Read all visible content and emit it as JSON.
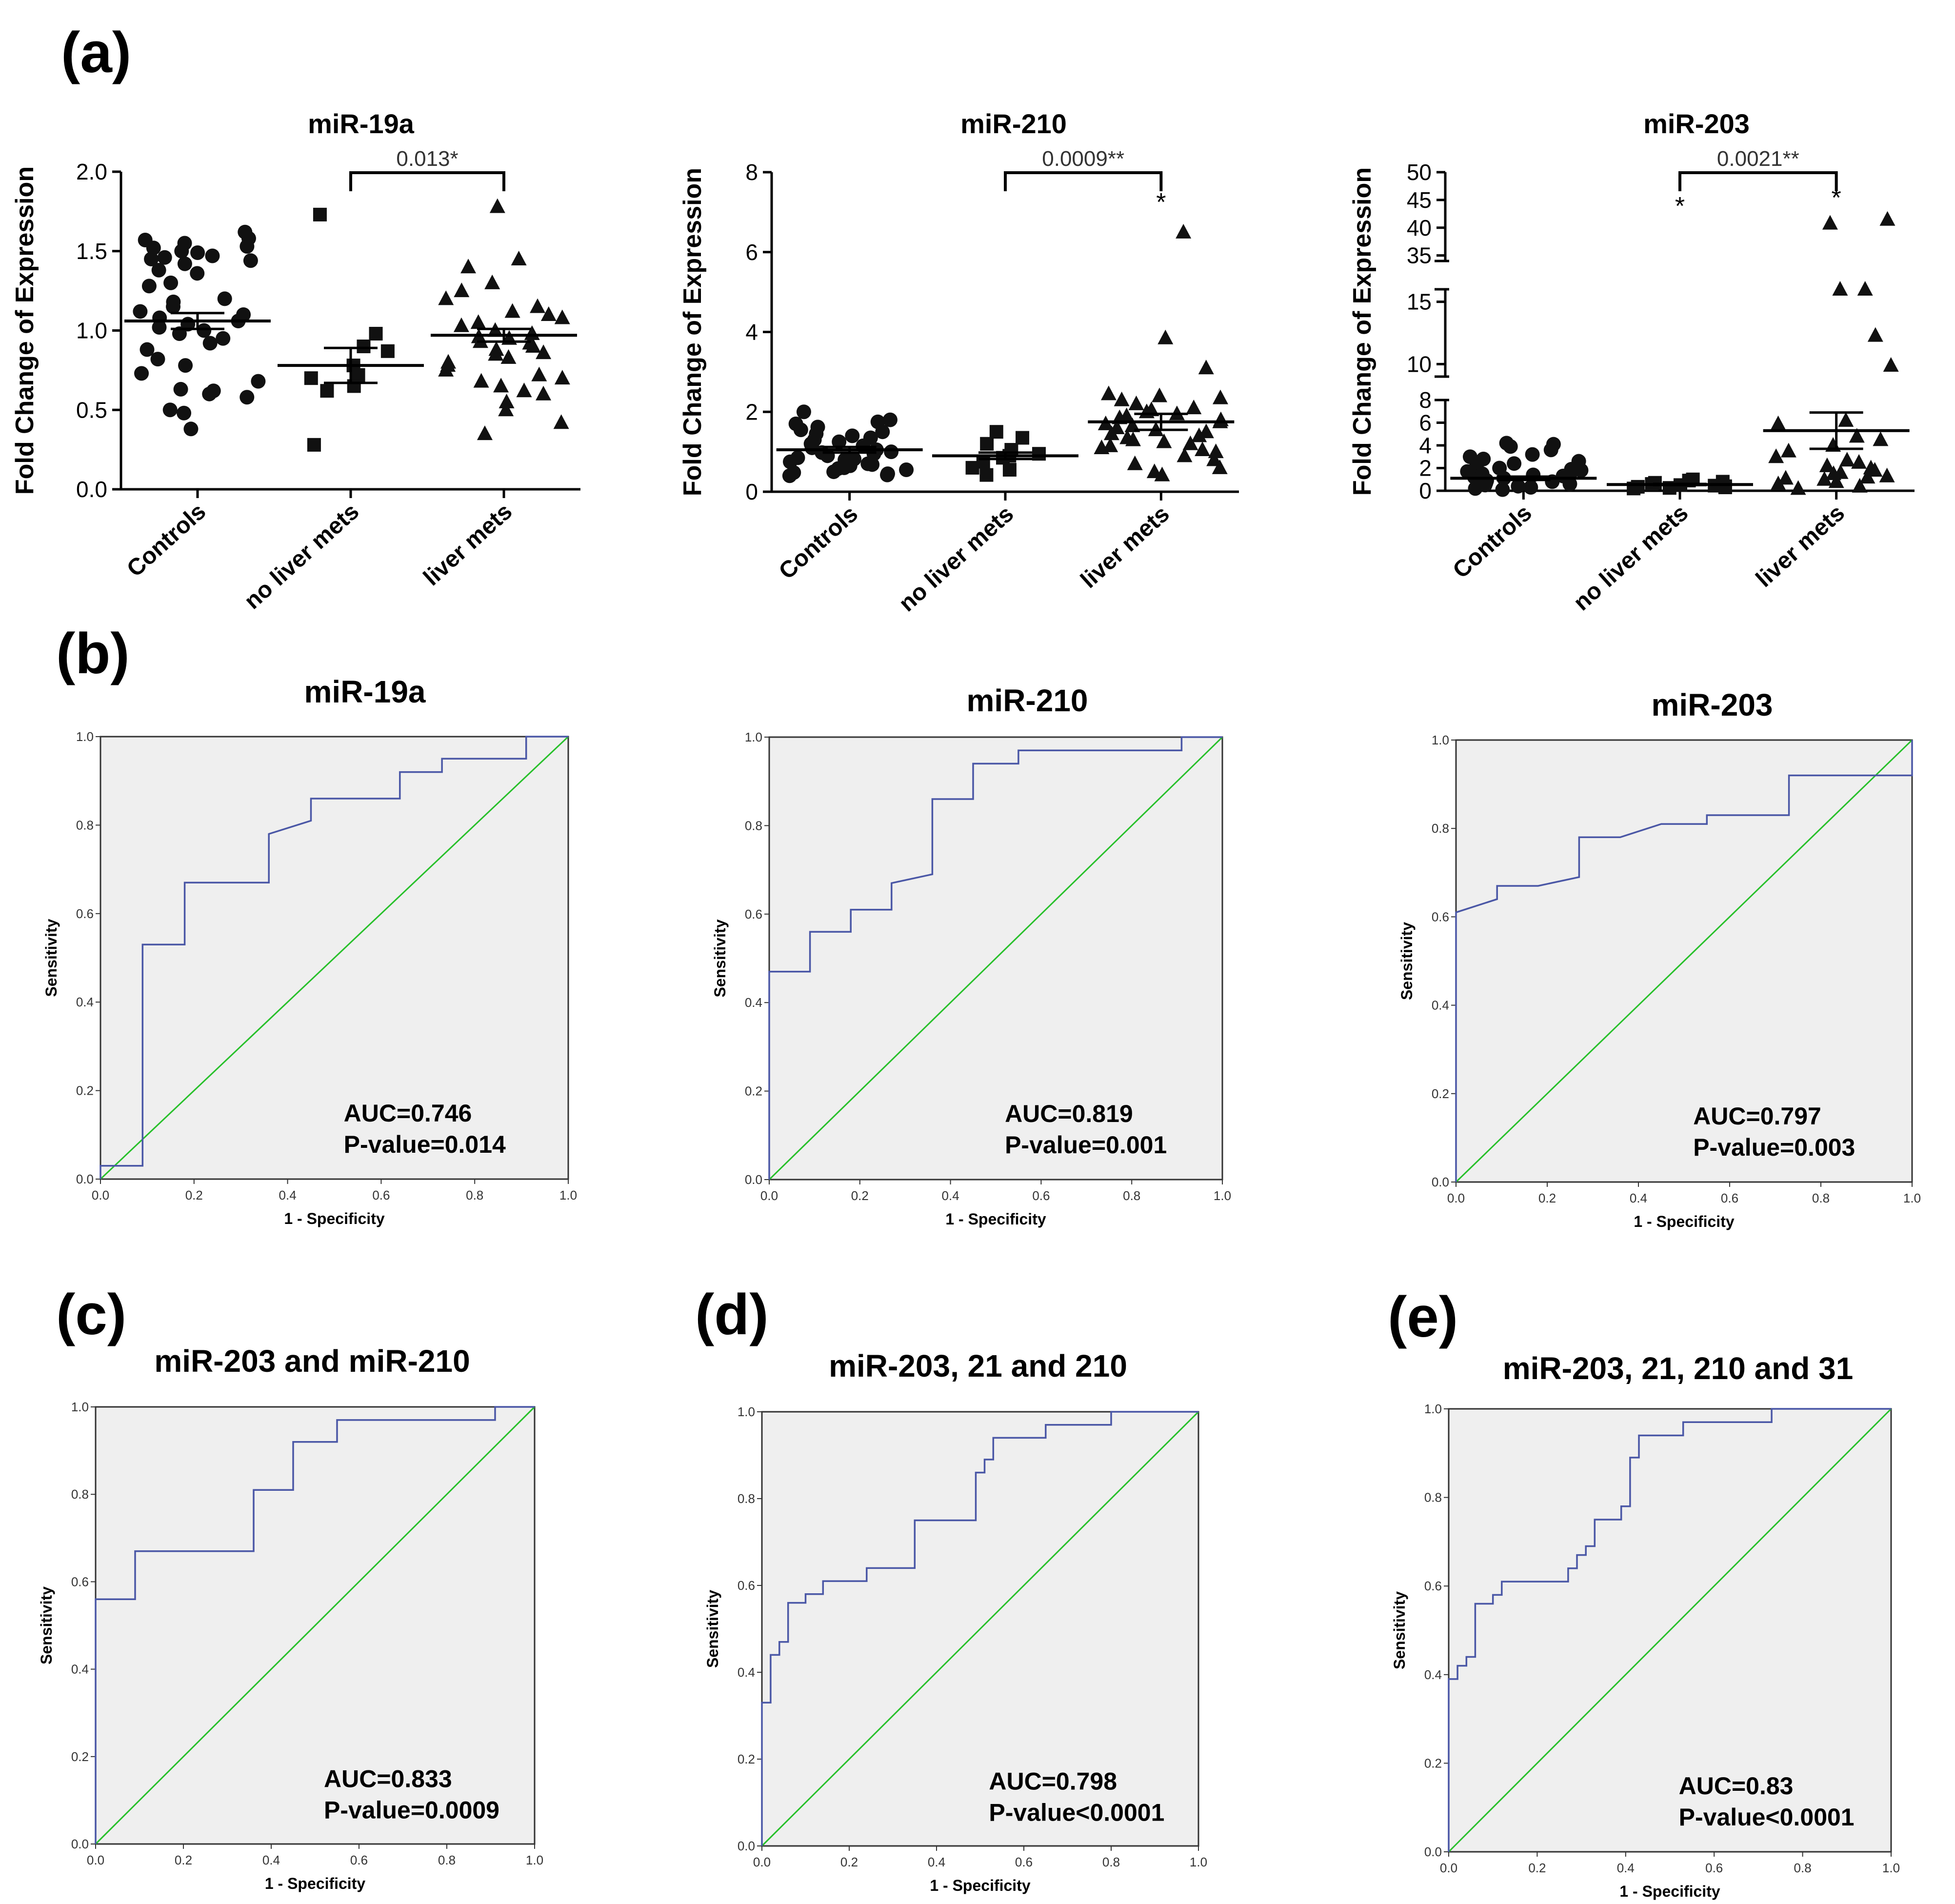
{
  "panel_labels": [
    "(a)",
    "(b)",
    "(c)",
    "(d)",
    "(e)"
  ],
  "colors": {
    "roc_curve": "#4a57a6",
    "reference_line": "#27c02a",
    "plot_bg": "#efefef",
    "marker": "#111111"
  },
  "chart_data": [
    {
      "panel": "(a)",
      "type": "scatter",
      "title": "miR-19a",
      "ylabel": "Fold Change of Expression",
      "categories": [
        "Controls",
        "no liver mets",
        "liver mets"
      ],
      "ylim": [
        0,
        2.0
      ],
      "yticks": [
        "0.0",
        "0.5",
        "1.0",
        "1.5",
        "2.0"
      ],
      "series": [
        {
          "name": "Controls",
          "marker": "circle",
          "mean": 1.06,
          "sem": 0.05,
          "values": [
            1.62,
            1.58,
            1.57,
            1.55,
            1.53,
            1.52,
            1.5,
            1.49,
            1.47,
            1.46,
            1.45,
            1.44,
            1.42,
            1.38,
            1.36,
            1.3,
            1.28,
            1.2,
            1.18,
            1.15,
            1.12,
            1.1,
            1.08,
            1.06,
            1.04,
            1.02,
            1.0,
            0.98,
            0.95,
            0.92,
            0.88,
            0.82,
            0.78,
            0.73,
            0.68,
            0.63,
            0.62,
            0.6,
            0.58,
            0.5,
            0.48,
            0.38
          ]
        },
        {
          "name": "no liver mets",
          "marker": "square",
          "mean": 0.78,
          "sem": 0.11,
          "values": [
            1.73,
            0.98,
            0.9,
            0.87,
            0.78,
            0.72,
            0.7,
            0.65,
            0.62,
            0.28
          ]
        },
        {
          "name": "liver mets",
          "marker": "triangle",
          "mean": 0.97,
          "sem": 0.04,
          "values": [
            1.78,
            1.45,
            1.4,
            1.3,
            1.25,
            1.2,
            1.15,
            1.12,
            1.1,
            1.08,
            1.05,
            1.03,
            1.0,
            0.98,
            0.96,
            0.95,
            0.93,
            0.92,
            0.9,
            0.88,
            0.86,
            0.85,
            0.83,
            0.8,
            0.78,
            0.75,
            0.72,
            0.7,
            0.68,
            0.65,
            0.62,
            0.6,
            0.55,
            0.5,
            0.42,
            0.35
          ]
        }
      ],
      "comparison": {
        "groups": [
          "no liver mets",
          "liver mets"
        ],
        "label": "0.013*"
      },
      "stars": []
    },
    {
      "panel": "(a)",
      "type": "scatter",
      "title": "miR-210",
      "ylabel": "Fold Change of Expression",
      "categories": [
        "Controls",
        "no liver mets",
        "liver mets"
      ],
      "ylim": [
        0,
        8
      ],
      "yticks": [
        "0",
        "2",
        "4",
        "6",
        "8"
      ],
      "series": [
        {
          "name": "Controls",
          "marker": "circle",
          "mean": 1.05,
          "sem": 0.07,
          "values": [
            2.0,
            1.8,
            1.75,
            1.7,
            1.62,
            1.55,
            1.5,
            1.45,
            1.4,
            1.35,
            1.3,
            1.25,
            1.2,
            1.15,
            1.1,
            1.05,
            1.0,
            0.98,
            0.95,
            0.9,
            0.85,
            0.82,
            0.8,
            0.75,
            0.7,
            0.68,
            0.65,
            0.6,
            0.58,
            0.55,
            0.5,
            0.48,
            0.45,
            0.42,
            0.4
          ]
        },
        {
          "name": "no liver mets",
          "marker": "square",
          "mean": 0.9,
          "sem": 0.08,
          "values": [
            1.5,
            1.35,
            1.2,
            1.05,
            0.95,
            0.9,
            0.85,
            0.75,
            0.6,
            0.55,
            0.42
          ]
        },
        {
          "name": "liver mets",
          "marker": "triangle",
          "mean": 1.75,
          "sem": 0.2,
          "values": [
            6.5,
            3.85,
            3.1,
            2.45,
            2.4,
            2.35,
            2.3,
            2.2,
            2.1,
            2.05,
            2.0,
            1.95,
            1.9,
            1.85,
            1.8,
            1.75,
            1.7,
            1.65,
            1.6,
            1.55,
            1.5,
            1.45,
            1.4,
            1.35,
            1.3,
            1.25,
            1.2,
            1.15,
            1.1,
            1.05,
            1.0,
            0.9,
            0.8,
            0.7,
            0.6,
            0.5,
            0.42
          ]
        }
      ],
      "comparison": {
        "groups": [
          "no liver mets",
          "liver mets"
        ],
        "label": "0.0009**"
      },
      "stars": [
        {
          "group": "liver mets",
          "label": "*",
          "y": 7.4
        }
      ]
    },
    {
      "panel": "(a)",
      "type": "scatter",
      "title": "miR-203",
      "ylabel": "Fold Change of Expression",
      "categories": [
        "Controls",
        "no liver mets",
        "liver mets"
      ],
      "ylim": [
        0,
        50
      ],
      "y_axis_breaks": [
        [
          8,
          9
        ],
        [
          16,
          34
        ]
      ],
      "yticks": [
        "0",
        "2",
        "4",
        "6",
        "8",
        "10",
        "15",
        "35",
        "40",
        "45",
        "50"
      ],
      "series": [
        {
          "name": "Controls",
          "marker": "circle",
          "mean": 1.1,
          "sem": 0.15,
          "values": [
            4.2,
            4.1,
            3.9,
            3.6,
            3.2,
            3.0,
            2.8,
            2.6,
            2.4,
            2.2,
            2.0,
            1.9,
            1.8,
            1.7,
            1.6,
            1.5,
            1.4,
            1.3,
            1.2,
            1.1,
            1.0,
            0.9,
            0.8,
            0.7,
            0.6,
            0.5,
            0.4,
            0.3,
            0.2,
            0.1
          ]
        },
        {
          "name": "no liver mets",
          "marker": "square",
          "mean": 0.55,
          "sem": 0.05,
          "values": [
            1.0,
            0.9,
            0.8,
            0.7,
            0.6,
            0.5,
            0.45,
            0.4,
            0.35,
            0.3,
            0.25,
            0.2
          ]
        },
        {
          "name": "liver mets",
          "marker": "triangle",
          "mean": 5.3,
          "sem": 1.6,
          "values": [
            41.5,
            40.8,
            16.0,
            16.0,
            12.3,
            9.9,
            6.2,
            5.9,
            4.8,
            4.5,
            4.0,
            3.5,
            3.0,
            2.7,
            2.5,
            2.2,
            2.0,
            1.8,
            1.6,
            1.5,
            1.3,
            1.2,
            1.1,
            1.0,
            0.8,
            0.6,
            0.4,
            0.2
          ]
        }
      ],
      "comparison": {
        "groups": [
          "no liver mets",
          "liver mets"
        ],
        "label": "0.0021**"
      },
      "stars": [
        {
          "group": "no liver mets",
          "label": "*",
          "y": 45
        },
        {
          "group": "liver mets",
          "label": "*",
          "y": 46.5
        }
      ]
    },
    {
      "panel": "(b)",
      "type": "line",
      "title": "miR-19a",
      "xlabel": "1 - Specificity",
      "ylabel": "Sensitivity",
      "xlim": [
        0,
        1
      ],
      "ylim": [
        0,
        1
      ],
      "xticks": [
        "0.0",
        "0.2",
        "0.4",
        "0.6",
        "0.8",
        "1.0"
      ],
      "yticks": [
        "0.0",
        "0.2",
        "0.4",
        "0.6",
        "0.8",
        "1.0"
      ],
      "auc_text": "AUC=0.746",
      "p_text": "P-value=0.014",
      "roc": [
        [
          0,
          0
        ],
        [
          0,
          0.03
        ],
        [
          0.09,
          0.03
        ],
        [
          0.09,
          0.53
        ],
        [
          0.18,
          0.53
        ],
        [
          0.18,
          0.67
        ],
        [
          0.36,
          0.67
        ],
        [
          0.36,
          0.78
        ],
        [
          0.45,
          0.81
        ],
        [
          0.45,
          0.86
        ],
        [
          0.64,
          0.86
        ],
        [
          0.64,
          0.92
        ],
        [
          0.73,
          0.92
        ],
        [
          0.73,
          0.95
        ],
        [
          0.91,
          0.95
        ],
        [
          0.91,
          1
        ],
        [
          1,
          1
        ]
      ]
    },
    {
      "panel": "(b)",
      "type": "line",
      "title": "miR-210",
      "xlabel": "1 - Specificity",
      "ylabel": "Sensitivity",
      "xlim": [
        0,
        1
      ],
      "ylim": [
        0,
        1
      ],
      "xticks": [
        "0.0",
        "0.2",
        "0.4",
        "0.6",
        "0.8",
        "1.0"
      ],
      "yticks": [
        "0.0",
        "0.2",
        "0.4",
        "0.6",
        "0.8",
        "1.0"
      ],
      "auc_text": "AUC=0.819",
      "p_text": "P-value=0.001",
      "roc": [
        [
          0,
          0
        ],
        [
          0,
          0.47
        ],
        [
          0.09,
          0.47
        ],
        [
          0.09,
          0.56
        ],
        [
          0.18,
          0.56
        ],
        [
          0.18,
          0.61
        ],
        [
          0.27,
          0.61
        ],
        [
          0.27,
          0.67
        ],
        [
          0.36,
          0.69
        ],
        [
          0.36,
          0.86
        ],
        [
          0.45,
          0.86
        ],
        [
          0.45,
          0.94
        ],
        [
          0.55,
          0.94
        ],
        [
          0.55,
          0.97
        ],
        [
          0.91,
          0.97
        ],
        [
          0.91,
          1
        ],
        [
          1,
          1
        ]
      ]
    },
    {
      "panel": "(b)",
      "type": "line",
      "title": "miR-203",
      "xlabel": "1 - Specificity",
      "ylabel": "Sensitivity",
      "xlim": [
        0,
        1
      ],
      "ylim": [
        0,
        1
      ],
      "xticks": [
        "0.0",
        "0.2",
        "0.4",
        "0.6",
        "0.8",
        "1.0"
      ],
      "yticks": [
        "0.0",
        "0.2",
        "0.4",
        "0.6",
        "0.8",
        "1.0"
      ],
      "auc_text": "AUC=0.797",
      "p_text": "P-value=0.003",
      "roc": [
        [
          0,
          0
        ],
        [
          0,
          0.61
        ],
        [
          0.09,
          0.64
        ],
        [
          0.09,
          0.67
        ],
        [
          0.18,
          0.67
        ],
        [
          0.27,
          0.69
        ],
        [
          0.27,
          0.78
        ],
        [
          0.36,
          0.78
        ],
        [
          0.45,
          0.81
        ],
        [
          0.55,
          0.81
        ],
        [
          0.55,
          0.83
        ],
        [
          0.73,
          0.83
        ],
        [
          0.73,
          0.92
        ],
        [
          1,
          0.92
        ],
        [
          1,
          1
        ]
      ]
    },
    {
      "panel": "(c)",
      "type": "line",
      "title": "miR-203 and miR-210",
      "xlabel": "1 - Specificity",
      "ylabel": "Sensitivity",
      "xlim": [
        0,
        1
      ],
      "ylim": [
        0,
        1
      ],
      "xticks": [
        "0.0",
        "0.2",
        "0.4",
        "0.6",
        "0.8",
        "1.0"
      ],
      "yticks": [
        "0.0",
        "0.2",
        "0.4",
        "0.6",
        "0.8",
        "1.0"
      ],
      "auc_text": "AUC=0.833",
      "p_text": "P-value=0.0009",
      "roc": [
        [
          0,
          0
        ],
        [
          0,
          0.56
        ],
        [
          0.09,
          0.56
        ],
        [
          0.09,
          0.67
        ],
        [
          0.36,
          0.67
        ],
        [
          0.36,
          0.81
        ],
        [
          0.45,
          0.81
        ],
        [
          0.45,
          0.92
        ],
        [
          0.55,
          0.92
        ],
        [
          0.55,
          0.97
        ],
        [
          0.91,
          0.97
        ],
        [
          0.91,
          1
        ],
        [
          1,
          1
        ]
      ]
    },
    {
      "panel": "(d)",
      "type": "line",
      "title": "miR-203, 21 and 210",
      "xlabel": "1 - Specificity",
      "ylabel": "Sensitivity",
      "xlim": [
        0,
        1
      ],
      "ylim": [
        0,
        1
      ],
      "xticks": [
        "0.0",
        "0.2",
        "0.4",
        "0.6",
        "0.8",
        "1.0"
      ],
      "yticks": [
        "0.0",
        "0.2",
        "0.4",
        "0.6",
        "0.8",
        "1.0"
      ],
      "auc_text": "AUC=0.798",
      "p_text": "P-value<0.0001",
      "roc": [
        [
          0,
          0
        ],
        [
          0,
          0.33
        ],
        [
          0.02,
          0.33
        ],
        [
          0.02,
          0.44
        ],
        [
          0.04,
          0.44
        ],
        [
          0.04,
          0.47
        ],
        [
          0.06,
          0.47
        ],
        [
          0.06,
          0.56
        ],
        [
          0.1,
          0.56
        ],
        [
          0.1,
          0.58
        ],
        [
          0.14,
          0.58
        ],
        [
          0.14,
          0.61
        ],
        [
          0.24,
          0.61
        ],
        [
          0.24,
          0.64
        ],
        [
          0.35,
          0.64
        ],
        [
          0.35,
          0.75
        ],
        [
          0.49,
          0.75
        ],
        [
          0.49,
          0.86
        ],
        [
          0.51,
          0.86
        ],
        [
          0.51,
          0.89
        ],
        [
          0.53,
          0.89
        ],
        [
          0.53,
          0.94
        ],
        [
          0.65,
          0.94
        ],
        [
          0.65,
          0.97
        ],
        [
          0.8,
          0.97
        ],
        [
          0.8,
          1
        ],
        [
          1,
          1
        ]
      ]
    },
    {
      "panel": "(e)",
      "type": "line",
      "title": "miR-203, 21, 210 and 31",
      "xlabel": "1 - Specificity",
      "ylabel": "Sensitivity",
      "xlim": [
        0,
        1
      ],
      "ylim": [
        0,
        1
      ],
      "xticks": [
        "0.0",
        "0.2",
        "0.4",
        "0.6",
        "0.8",
        "1.0"
      ],
      "yticks": [
        "0.0",
        "0.2",
        "0.4",
        "0.6",
        "0.8",
        "1.0"
      ],
      "auc_text": "AUC=0.83",
      "p_text": "P-value<0.0001",
      "roc": [
        [
          0,
          0
        ],
        [
          0,
          0.39
        ],
        [
          0.02,
          0.39
        ],
        [
          0.02,
          0.42
        ],
        [
          0.04,
          0.42
        ],
        [
          0.04,
          0.44
        ],
        [
          0.06,
          0.44
        ],
        [
          0.06,
          0.56
        ],
        [
          0.1,
          0.56
        ],
        [
          0.1,
          0.58
        ],
        [
          0.12,
          0.58
        ],
        [
          0.12,
          0.61
        ],
        [
          0.27,
          0.61
        ],
        [
          0.27,
          0.64
        ],
        [
          0.29,
          0.64
        ],
        [
          0.29,
          0.67
        ],
        [
          0.31,
          0.67
        ],
        [
          0.31,
          0.69
        ],
        [
          0.33,
          0.69
        ],
        [
          0.33,
          0.75
        ],
        [
          0.39,
          0.75
        ],
        [
          0.39,
          0.78
        ],
        [
          0.41,
          0.78
        ],
        [
          0.41,
          0.89
        ],
        [
          0.43,
          0.89
        ],
        [
          0.43,
          0.94
        ],
        [
          0.53,
          0.94
        ],
        [
          0.53,
          0.97
        ],
        [
          0.73,
          0.97
        ],
        [
          0.73,
          1
        ],
        [
          1,
          1
        ]
      ]
    }
  ]
}
